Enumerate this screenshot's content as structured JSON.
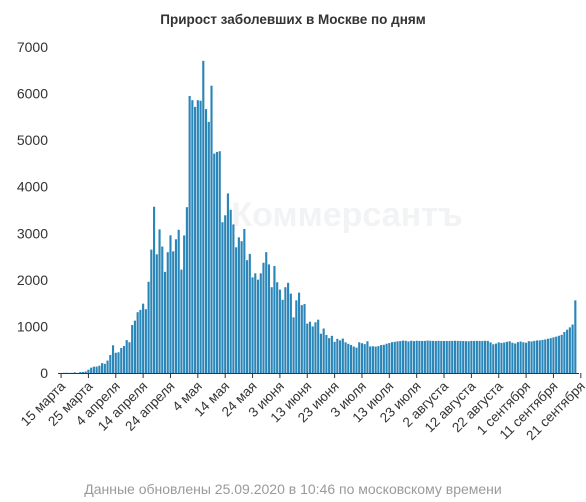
{
  "chart_data": {
    "type": "bar",
    "title": "Прирост заболевших в Москве по дням",
    "watermark": "Коммерсантъ",
    "footnote": "Данные обновлены 25.09.2020 в 10:46 по московскому времени",
    "xlabel": "",
    "ylabel": "",
    "ylim": [
      0,
      7000
    ],
    "yticks": [
      0,
      1000,
      2000,
      3000,
      4000,
      5000,
      6000,
      7000
    ],
    "grid": false,
    "bar_color": "#2a86b8",
    "xtick_labels": [
      {
        "label": "15 марта",
        "index": 0
      },
      {
        "label": "25 марта",
        "index": 10
      },
      {
        "label": "4 апреля",
        "index": 20
      },
      {
        "label": "14 апреля",
        "index": 30
      },
      {
        "label": "24 апреля",
        "index": 40
      },
      {
        "label": "4 мая",
        "index": 50
      },
      {
        "label": "14 мая",
        "index": 60
      },
      {
        "label": "24 мая",
        "index": 70
      },
      {
        "label": "3 июня",
        "index": 80
      },
      {
        "label": "13 июня",
        "index": 90
      },
      {
        "label": "23 июня",
        "index": 100
      },
      {
        "label": "3 июля",
        "index": 110
      },
      {
        "label": "13 июля",
        "index": 120
      },
      {
        "label": "23 июля",
        "index": 130
      },
      {
        "label": "2 августа",
        "index": 140
      },
      {
        "label": "12 августа",
        "index": 150
      },
      {
        "label": "22 августа",
        "index": 160
      },
      {
        "label": "1 сентября",
        "index": 170
      },
      {
        "label": "11 сентября",
        "index": 180
      },
      {
        "label": "21 сентября",
        "index": 190
      }
    ],
    "values": [
      1,
      5,
      6,
      3,
      5,
      14,
      2,
      20,
      23,
      33,
      71,
      114,
      136,
      137,
      157,
      212,
      197,
      267,
      387,
      595,
      434,
      445,
      536,
      580,
      706,
      660,
      1030,
      1124,
      1306,
      1355,
      1489,
      1370,
      1959,
      2649,
      3570,
      2548,
      3083,
      2715,
      2171,
      2594,
      2957,
      2612,
      2871,
      3075,
      2220,
      2954,
      3561,
      5948,
      5858,
      5714,
      5858,
      5846,
      6703,
      5667,
      5392,
      6169,
      4712,
      4747,
      4762,
      3238,
      3386,
      3855,
      3505,
      3190,
      2699,
      2913,
      2830,
      3093,
      2422,
      2557,
      2054,
      2140,
      2004,
      2140,
      2367,
      2595,
      2332,
      1842,
      2297,
      1949,
      1790,
      1572,
      1842,
      1937,
      1704,
      1195,
      1560,
      1726,
      1457,
      1480,
      1061,
      1102,
      1000,
      1089,
      1145,
      844,
      955,
      816,
      749,
      798,
      670,
      733,
      700,
      739,
      659,
      627,
      602,
      567,
      545,
      659,
      640,
      620,
      681,
      571,
      574,
      566,
      577,
      600,
      606,
      628,
      643,
      663,
      670,
      680,
      686,
      696,
      692,
      678,
      693,
      685,
      693,
      690,
      688,
      689,
      697,
      692,
      690,
      688,
      692,
      688,
      687,
      688,
      689,
      690,
      692,
      690,
      689,
      686,
      683,
      682,
      690,
      688,
      690,
      689,
      687,
      691,
      690,
      658,
      617,
      631,
      658,
      646,
      655,
      670,
      681,
      650,
      633,
      663,
      676,
      660,
      650,
      684,
      678,
      690,
      699,
      700,
      710,
      720,
      735,
      748,
      765,
      780,
      800,
      820,
      880,
      930,
      980,
      1040,
      1560
    ]
  }
}
